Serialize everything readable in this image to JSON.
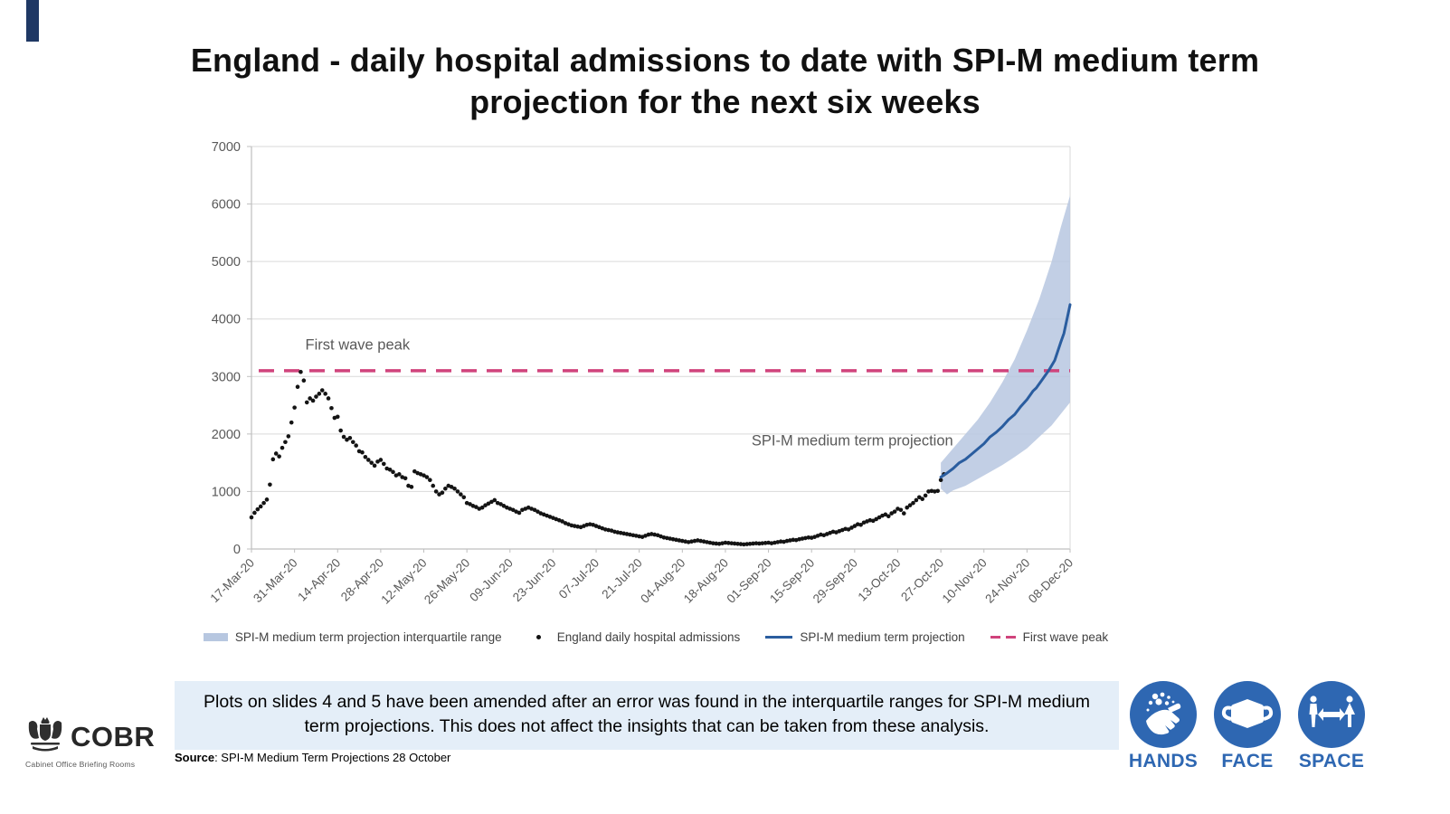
{
  "slide": {
    "title": "England - daily hospital admissions to date with SPI-M medium term projection for the next six weeks"
  },
  "chart_data": {
    "type": "scatter",
    "title": "England - daily hospital admissions to date with SPI-M medium term projection for the next six weeks",
    "xlabel": "",
    "ylabel": "",
    "ylim": [
      0,
      7000
    ],
    "ytick_step": 1000,
    "x_tick_interval_days": 14,
    "x_end_day": 266,
    "x_tick_labels": [
      "17-Mar-20",
      "31-Mar-20",
      "14-Apr-20",
      "28-Apr-20",
      "12-May-20",
      "26-May-20",
      "09-Jun-20",
      "23-Jun-20",
      "07-Jul-20",
      "21-Jul-20",
      "04-Aug-20",
      "18-Aug-20",
      "01-Sep-20",
      "15-Sep-20",
      "29-Sep-20",
      "13-Oct-20",
      "27-Oct-20",
      "10-Nov-20",
      "24-Nov-20",
      "08-Dec-20"
    ],
    "first_wave_peak_value": 3100,
    "annotations": [
      {
        "text": "First wave peak",
        "day": 17.5,
        "value": 3470
      },
      {
        "text": "SPI-M medium term projection",
        "day": 162.5,
        "value": 1800
      }
    ],
    "series": {
      "admissions": {
        "name": "England daily hospital admissions",
        "start_date": "17-Mar-20",
        "daily_values": [
          550,
          630,
          690,
          740,
          800,
          860,
          1120,
          1560,
          1660,
          1610,
          1760,
          1860,
          1960,
          2200,
          2460,
          2820,
          3080,
          2930,
          2550,
          2620,
          2580,
          2650,
          2700,
          2760,
          2700,
          2620,
          2450,
          2280,
          2300,
          2060,
          1950,
          1900,
          1930,
          1860,
          1800,
          1700,
          1680,
          1600,
          1550,
          1500,
          1450,
          1520,
          1550,
          1480,
          1400,
          1380,
          1340,
          1280,
          1300,
          1250,
          1230,
          1100,
          1080,
          1350,
          1320,
          1300,
          1280,
          1250,
          1200,
          1100,
          1000,
          950,
          980,
          1050,
          1100,
          1080,
          1050,
          1000,
          950,
          900,
          800,
          780,
          750,
          730,
          700,
          720,
          760,
          790,
          820,
          850,
          800,
          780,
          750,
          720,
          700,
          680,
          650,
          630,
          680,
          700,
          720,
          700,
          680,
          650,
          620,
          600,
          580,
          560,
          540,
          520,
          500,
          480,
          450,
          430,
          410,
          400,
          390,
          380,
          400,
          420,
          430,
          420,
          400,
          380,
          360,
          340,
          330,
          320,
          300,
          290,
          280,
          270,
          260,
          250,
          240,
          230,
          220,
          210,
          230,
          250,
          260,
          250,
          240,
          220,
          200,
          190,
          180,
          170,
          160,
          150,
          140,
          130,
          120,
          130,
          140,
          150,
          140,
          130,
          120,
          110,
          100,
          95,
          90,
          100,
          110,
          105,
          100,
          95,
          90,
          85,
          80,
          85,
          90,
          95,
          100,
          95,
          100,
          105,
          110,
          100,
          110,
          120,
          130,
          125,
          140,
          150,
          160,
          155,
          170,
          180,
          190,
          200,
          195,
          210,
          230,
          250,
          240,
          260,
          280,
          300,
          290,
          310,
          330,
          350,
          340,
          370,
          400,
          430,
          420,
          460,
          480,
          500,
          490,
          520,
          550,
          580,
          600,
          570,
          620,
          650,
          700,
          680,
          620,
          720,
          760,
          800,
          850,
          900,
          870,
          930,
          1000,
          1010,
          1000,
          1010,
          1200,
          1300
        ]
      },
      "projection": {
        "name": "SPI-M medium term projection",
        "points": [
          [
            224,
            1250
          ],
          [
            226,
            1320
          ],
          [
            228,
            1400
          ],
          [
            230,
            1500
          ],
          [
            232,
            1560
          ],
          [
            234,
            1650
          ],
          [
            236,
            1740
          ],
          [
            238,
            1830
          ],
          [
            240,
            1950
          ],
          [
            242,
            2030
          ],
          [
            244,
            2130
          ],
          [
            246,
            2250
          ],
          [
            248,
            2340
          ],
          [
            250,
            2480
          ],
          [
            252,
            2600
          ],
          [
            254,
            2750
          ],
          [
            255,
            2800
          ],
          [
            257,
            2950
          ],
          [
            259,
            3100
          ],
          [
            261,
            3280
          ],
          [
            263,
            3600
          ],
          [
            264,
            3750
          ],
          [
            266,
            4250
          ]
        ]
      },
      "interquartile_range": {
        "name": "SPI-M medium term projection interquartile range",
        "lower": [
          [
            224,
            1050
          ],
          [
            226,
            950
          ],
          [
            228,
            1020
          ],
          [
            232,
            1100
          ],
          [
            236,
            1220
          ],
          [
            240,
            1340
          ],
          [
            244,
            1460
          ],
          [
            248,
            1600
          ],
          [
            252,
            1750
          ],
          [
            256,
            1950
          ],
          [
            260,
            2150
          ],
          [
            263,
            2350
          ],
          [
            266,
            2550
          ]
        ],
        "upper": [
          [
            224,
            1500
          ],
          [
            228,
            1750
          ],
          [
            232,
            2000
          ],
          [
            236,
            2250
          ],
          [
            240,
            2550
          ],
          [
            244,
            2900
          ],
          [
            248,
            3300
          ],
          [
            252,
            3800
          ],
          [
            256,
            4350
          ],
          [
            260,
            5000
          ],
          [
            263,
            5600
          ],
          [
            266,
            6150
          ]
        ]
      }
    },
    "colors": {
      "admissions": "#141414",
      "projection": "#2a5d9f",
      "band": "#b7c7e0",
      "peak_line": "#d0437c",
      "grid": "#d9d9d9",
      "axis": "#bfbfbf",
      "tick_text": "#595959",
      "annotation_text": "#595959"
    },
    "legend_position": "bottom",
    "grid": true
  },
  "legend": {
    "items": [
      {
        "label": "SPI-M medium term projection interquartile range",
        "marker": "band"
      },
      {
        "label": "England daily hospital admissions",
        "marker": "dot"
      },
      {
        "label": "SPI-M medium term projection",
        "marker": "line"
      },
      {
        "label": "First wave peak",
        "marker": "dash"
      }
    ]
  },
  "note": {
    "text": "Plots on slides 4 and 5 have been amended after an error was found in the interquartile ranges for SPI-M medium term projections. This does not affect the insights that can be taken from these analysis."
  },
  "source": {
    "label": "Source",
    "text": ": SPI-M Medium Term Projections 28 October"
  },
  "cobr": {
    "name": "COBR",
    "tagline": "Cabinet Office Briefing Rooms"
  },
  "campaign": {
    "color": "#2e67b2",
    "items": [
      {
        "label": "HANDS",
        "icon": "hand-washing-icon"
      },
      {
        "label": "FACE",
        "icon": "face-mask-icon"
      },
      {
        "label": "SPACE",
        "icon": "social-distance-icon"
      }
    ]
  }
}
